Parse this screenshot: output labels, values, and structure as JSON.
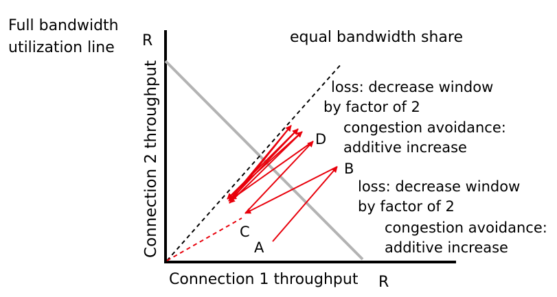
{
  "diagram": {
    "full_bandwidth_label_line1": "Full bandwidth",
    "full_bandwidth_label_line2": "utilization line",
    "y_axis_R": "R",
    "x_axis_R": "R",
    "y_axis_label": "Connection 2 throughput",
    "x_axis_label": "Connection 1 throughput",
    "equal_share_label": "equal bandwidth share",
    "annotation_upper": {
      "loss_line1": "loss: decrease window",
      "loss_line2": "by factor of 2",
      "ca_line1": "congestion avoidance:",
      "ca_line2": "additive increase"
    },
    "annotation_lower": {
      "loss_line1": "loss: decrease window",
      "loss_line2": "by factor of 2",
      "ca_line1": "congestion avoidance:",
      "ca_line2": "additive increase"
    },
    "points": {
      "a": "A",
      "b": "B",
      "c": "C",
      "d": "D"
    },
    "colors": {
      "axis": "#000000",
      "full_utilization_line": "#b3b3b3",
      "equal_share_line": "#000000",
      "trajectory": "#e8000b"
    }
  }
}
